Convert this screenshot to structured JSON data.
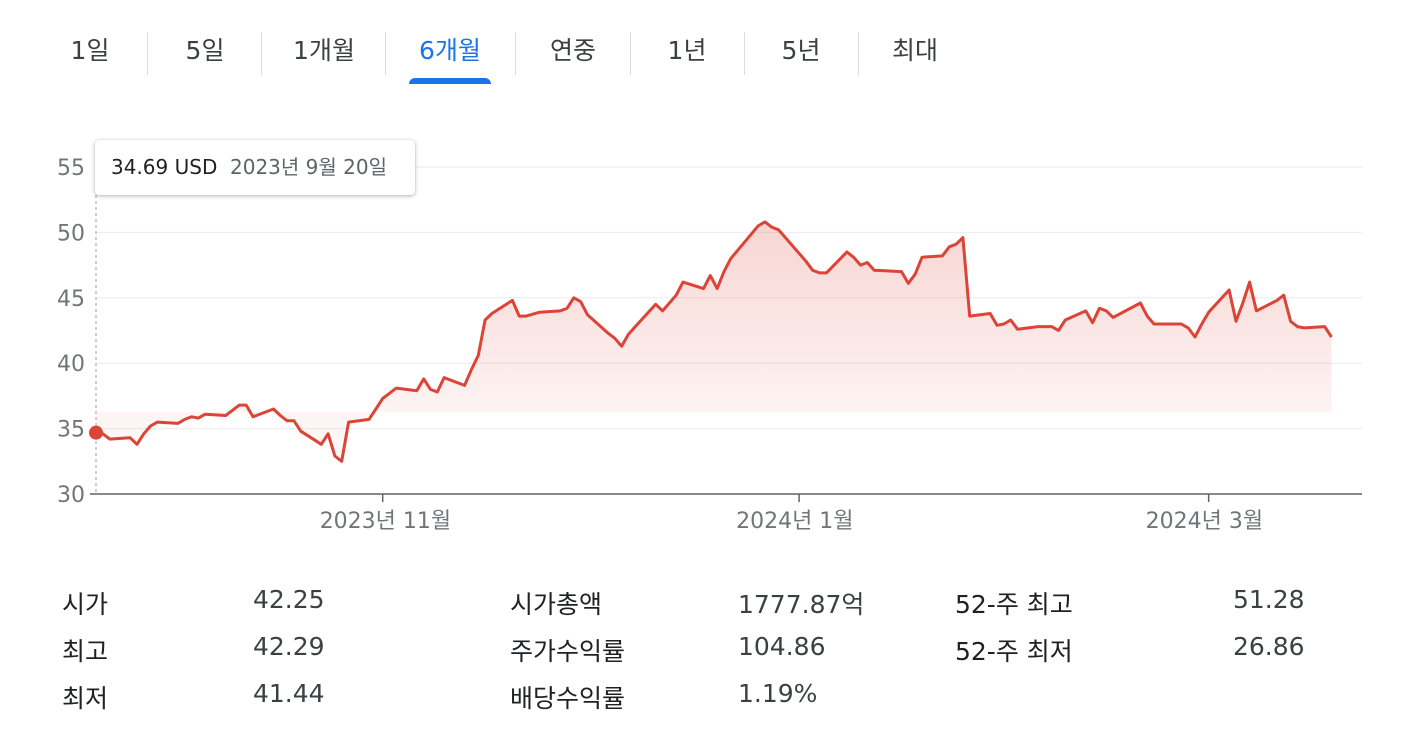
{
  "tabs": [
    {
      "label": "1일",
      "active": false
    },
    {
      "label": "5일",
      "active": false
    },
    {
      "label": "1개월",
      "active": false
    },
    {
      "label": "6개월",
      "active": true
    },
    {
      "label": "연중",
      "active": false
    },
    {
      "label": "1년",
      "active": false
    },
    {
      "label": "5년",
      "active": false
    },
    {
      "label": "최대",
      "active": false
    }
  ],
  "tooltip": {
    "value": "34.69 USD",
    "date": "2023년 9월 20일"
  },
  "colors": {
    "line": "#db4437",
    "accent": "#1a73e8",
    "grid": "#ebebeb"
  },
  "chart_data": {
    "type": "area",
    "ylim": [
      30,
      55
    ],
    "yticks": [
      30,
      35,
      40,
      45,
      50,
      55
    ],
    "xlim": [
      "2023-09-20",
      "2024-03-22"
    ],
    "xticks": [
      {
        "date": "2023-11-01",
        "label": "2023년 11월"
      },
      {
        "date": "2024-01-01",
        "label": "2024년 1월"
      },
      {
        "date": "2024-03-01",
        "label": "2024년 3월"
      }
    ],
    "highlight": {
      "date": "2023-09-20",
      "value": 34.69
    },
    "series": [
      {
        "points": [
          [
            "2023-09-20",
            34.69
          ],
          [
            "2023-09-21",
            34.6
          ],
          [
            "2023-09-22",
            34.2
          ],
          [
            "2023-09-25",
            34.3
          ],
          [
            "2023-09-26",
            33.8
          ],
          [
            "2023-09-27",
            34.6
          ],
          [
            "2023-09-28",
            35.2
          ],
          [
            "2023-09-29",
            35.5
          ],
          [
            "2023-10-02",
            35.4
          ],
          [
            "2023-10-03",
            35.7
          ],
          [
            "2023-10-04",
            35.9
          ],
          [
            "2023-10-05",
            35.8
          ],
          [
            "2023-10-06",
            36.1
          ],
          [
            "2023-10-09",
            36.0
          ],
          [
            "2023-10-10",
            36.4
          ],
          [
            "2023-10-11",
            36.8
          ],
          [
            "2023-10-12",
            36.8
          ],
          [
            "2023-10-13",
            35.9
          ],
          [
            "2023-10-16",
            36.5
          ],
          [
            "2023-10-17",
            36.0
          ],
          [
            "2023-10-18",
            35.6
          ],
          [
            "2023-10-19",
            35.6
          ],
          [
            "2023-10-20",
            34.8
          ],
          [
            "2023-10-23",
            33.8
          ],
          [
            "2023-10-24",
            34.6
          ],
          [
            "2023-10-25",
            32.9
          ],
          [
            "2023-10-26",
            32.5
          ],
          [
            "2023-10-27",
            35.5
          ],
          [
            "2023-10-30",
            35.7
          ],
          [
            "2023-10-31",
            36.5
          ],
          [
            "2023-11-01",
            37.3
          ],
          [
            "2023-11-02",
            37.7
          ],
          [
            "2023-11-03",
            38.1
          ],
          [
            "2023-11-06",
            37.9
          ],
          [
            "2023-11-07",
            38.8
          ],
          [
            "2023-11-08",
            38.0
          ],
          [
            "2023-11-09",
            37.8
          ],
          [
            "2023-11-10",
            38.9
          ],
          [
            "2023-11-13",
            38.3
          ],
          [
            "2023-11-14",
            39.5
          ],
          [
            "2023-11-15",
            40.6
          ],
          [
            "2023-11-16",
            43.3
          ],
          [
            "2023-11-17",
            43.8
          ],
          [
            "2023-11-20",
            44.8
          ],
          [
            "2023-11-21",
            43.6
          ],
          [
            "2023-11-22",
            43.6
          ],
          [
            "2023-11-24",
            43.9
          ],
          [
            "2023-11-27",
            44.0
          ],
          [
            "2023-11-28",
            44.2
          ],
          [
            "2023-11-29",
            45.0
          ],
          [
            "2023-11-30",
            44.7
          ],
          [
            "2023-12-01",
            43.7
          ],
          [
            "2023-12-04",
            42.3
          ],
          [
            "2023-12-05",
            41.9
          ],
          [
            "2023-12-06",
            41.3
          ],
          [
            "2023-12-07",
            42.2
          ],
          [
            "2023-12-08",
            42.8
          ],
          [
            "2023-12-11",
            44.5
          ],
          [
            "2023-12-12",
            44.0
          ],
          [
            "2023-12-13",
            44.6
          ],
          [
            "2023-12-14",
            45.2
          ],
          [
            "2023-12-15",
            46.2
          ],
          [
            "2023-12-18",
            45.7
          ],
          [
            "2023-12-19",
            46.7
          ],
          [
            "2023-12-20",
            45.7
          ],
          [
            "2023-12-21",
            47.0
          ],
          [
            "2023-12-22",
            48.0
          ],
          [
            "2023-12-26",
            50.5
          ],
          [
            "2023-12-27",
            50.8
          ],
          [
            "2023-12-28",
            50.4
          ],
          [
            "2023-12-29",
            50.2
          ],
          [
            "2024-01-02",
            47.8
          ],
          [
            "2024-01-03",
            47.1
          ],
          [
            "2024-01-04",
            46.9
          ],
          [
            "2024-01-05",
            46.9
          ],
          [
            "2024-01-08",
            48.5
          ],
          [
            "2024-01-09",
            48.1
          ],
          [
            "2024-01-10",
            47.5
          ],
          [
            "2024-01-11",
            47.7
          ],
          [
            "2024-01-12",
            47.1
          ],
          [
            "2024-01-16",
            47.0
          ],
          [
            "2024-01-17",
            46.1
          ],
          [
            "2024-01-18",
            46.8
          ],
          [
            "2024-01-19",
            48.1
          ],
          [
            "2024-01-22",
            48.2
          ],
          [
            "2024-01-23",
            48.9
          ],
          [
            "2024-01-24",
            49.1
          ],
          [
            "2024-01-25",
            49.6
          ],
          [
            "2024-01-26",
            43.6
          ],
          [
            "2024-01-29",
            43.8
          ],
          [
            "2024-01-30",
            42.9
          ],
          [
            "2024-01-31",
            43.0
          ],
          [
            "2024-02-01",
            43.3
          ],
          [
            "2024-02-02",
            42.6
          ],
          [
            "2024-02-05",
            42.8
          ],
          [
            "2024-02-06",
            42.8
          ],
          [
            "2024-02-07",
            42.8
          ],
          [
            "2024-02-08",
            42.5
          ],
          [
            "2024-02-09",
            43.3
          ],
          [
            "2024-02-12",
            44.0
          ],
          [
            "2024-02-13",
            43.1
          ],
          [
            "2024-02-14",
            44.2
          ],
          [
            "2024-02-15",
            44.0
          ],
          [
            "2024-02-16",
            43.5
          ],
          [
            "2024-02-20",
            44.6
          ],
          [
            "2024-02-21",
            43.6
          ],
          [
            "2024-02-22",
            43.0
          ],
          [
            "2024-02-23",
            43.0
          ],
          [
            "2024-02-26",
            43.0
          ],
          [
            "2024-02-27",
            42.7
          ],
          [
            "2024-02-28",
            42.0
          ],
          [
            "2024-02-29",
            43.0
          ],
          [
            "2024-03-01",
            43.9
          ],
          [
            "2024-03-04",
            45.6
          ],
          [
            "2024-03-05",
            43.2
          ],
          [
            "2024-03-06",
            44.6
          ],
          [
            "2024-03-07",
            46.2
          ],
          [
            "2024-03-08",
            44.0
          ],
          [
            "2024-03-11",
            44.8
          ],
          [
            "2024-03-12",
            45.2
          ],
          [
            "2024-03-13",
            43.2
          ],
          [
            "2024-03-14",
            42.8
          ],
          [
            "2024-03-15",
            42.7
          ],
          [
            "2024-03-18",
            42.8
          ],
          [
            "2024-03-19",
            42.0
          ]
        ]
      }
    ]
  },
  "stats": {
    "col1": [
      {
        "label": "시가",
        "value": "42.25"
      },
      {
        "label": "최고",
        "value": "42.29"
      },
      {
        "label": "최저",
        "value": "41.44"
      }
    ],
    "col2": [
      {
        "label": "시가총액",
        "value": "1777.87억"
      },
      {
        "label": "주가수익률",
        "value": "104.86"
      },
      {
        "label": "배당수익률",
        "value": "1.19%"
      }
    ],
    "col3": [
      {
        "label": "52-주 최고",
        "value": "51.28"
      },
      {
        "label": "52-주 최저",
        "value": "26.86"
      }
    ]
  }
}
